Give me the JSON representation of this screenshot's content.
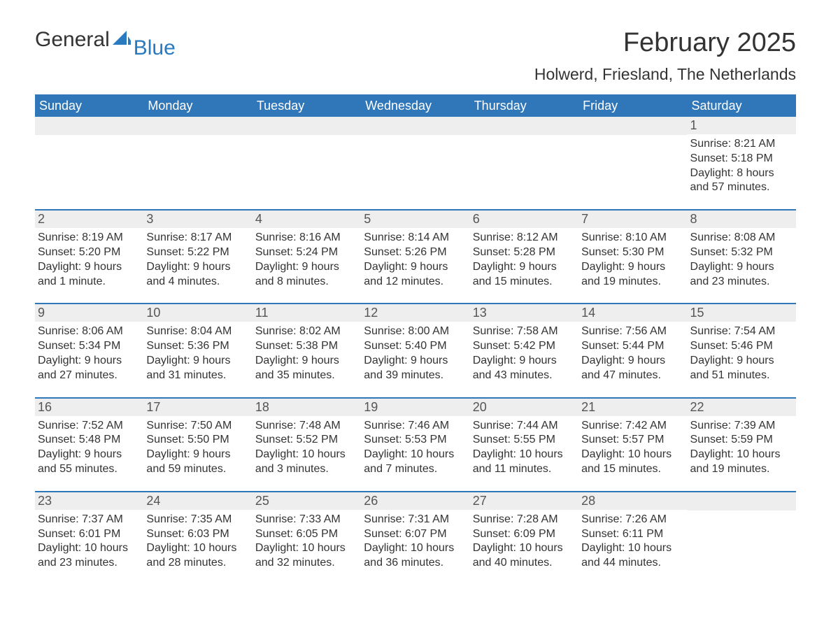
{
  "logo": {
    "part1": "General",
    "part2": "Blue",
    "icon_color": "#2a7ac0"
  },
  "title": "February 2025",
  "location": "Holwerd, Friesland, The Netherlands",
  "colors": {
    "header_bg": "#3077b9",
    "header_text": "#ffffff",
    "daynum_bg": "#eeeeee",
    "body_text": "#333333",
    "rule": "#3077b9"
  },
  "weekdays": [
    "Sunday",
    "Monday",
    "Tuesday",
    "Wednesday",
    "Thursday",
    "Friday",
    "Saturday"
  ],
  "weeks": [
    [
      null,
      null,
      null,
      null,
      null,
      null,
      {
        "n": "1",
        "sunrise": "Sunrise: 8:21 AM",
        "sunset": "Sunset: 5:18 PM",
        "daylight": "Daylight: 8 hours and 57 minutes."
      }
    ],
    [
      {
        "n": "2",
        "sunrise": "Sunrise: 8:19 AM",
        "sunset": "Sunset: 5:20 PM",
        "daylight": "Daylight: 9 hours and 1 minute."
      },
      {
        "n": "3",
        "sunrise": "Sunrise: 8:17 AM",
        "sunset": "Sunset: 5:22 PM",
        "daylight": "Daylight: 9 hours and 4 minutes."
      },
      {
        "n": "4",
        "sunrise": "Sunrise: 8:16 AM",
        "sunset": "Sunset: 5:24 PM",
        "daylight": "Daylight: 9 hours and 8 minutes."
      },
      {
        "n": "5",
        "sunrise": "Sunrise: 8:14 AM",
        "sunset": "Sunset: 5:26 PM",
        "daylight": "Daylight: 9 hours and 12 minutes."
      },
      {
        "n": "6",
        "sunrise": "Sunrise: 8:12 AM",
        "sunset": "Sunset: 5:28 PM",
        "daylight": "Daylight: 9 hours and 15 minutes."
      },
      {
        "n": "7",
        "sunrise": "Sunrise: 8:10 AM",
        "sunset": "Sunset: 5:30 PM",
        "daylight": "Daylight: 9 hours and 19 minutes."
      },
      {
        "n": "8",
        "sunrise": "Sunrise: 8:08 AM",
        "sunset": "Sunset: 5:32 PM",
        "daylight": "Daylight: 9 hours and 23 minutes."
      }
    ],
    [
      {
        "n": "9",
        "sunrise": "Sunrise: 8:06 AM",
        "sunset": "Sunset: 5:34 PM",
        "daylight": "Daylight: 9 hours and 27 minutes."
      },
      {
        "n": "10",
        "sunrise": "Sunrise: 8:04 AM",
        "sunset": "Sunset: 5:36 PM",
        "daylight": "Daylight: 9 hours and 31 minutes."
      },
      {
        "n": "11",
        "sunrise": "Sunrise: 8:02 AM",
        "sunset": "Sunset: 5:38 PM",
        "daylight": "Daylight: 9 hours and 35 minutes."
      },
      {
        "n": "12",
        "sunrise": "Sunrise: 8:00 AM",
        "sunset": "Sunset: 5:40 PM",
        "daylight": "Daylight: 9 hours and 39 minutes."
      },
      {
        "n": "13",
        "sunrise": "Sunrise: 7:58 AM",
        "sunset": "Sunset: 5:42 PM",
        "daylight": "Daylight: 9 hours and 43 minutes."
      },
      {
        "n": "14",
        "sunrise": "Sunrise: 7:56 AM",
        "sunset": "Sunset: 5:44 PM",
        "daylight": "Daylight: 9 hours and 47 minutes."
      },
      {
        "n": "15",
        "sunrise": "Sunrise: 7:54 AM",
        "sunset": "Sunset: 5:46 PM",
        "daylight": "Daylight: 9 hours and 51 minutes."
      }
    ],
    [
      {
        "n": "16",
        "sunrise": "Sunrise: 7:52 AM",
        "sunset": "Sunset: 5:48 PM",
        "daylight": "Daylight: 9 hours and 55 minutes."
      },
      {
        "n": "17",
        "sunrise": "Sunrise: 7:50 AM",
        "sunset": "Sunset: 5:50 PM",
        "daylight": "Daylight: 9 hours and 59 minutes."
      },
      {
        "n": "18",
        "sunrise": "Sunrise: 7:48 AM",
        "sunset": "Sunset: 5:52 PM",
        "daylight": "Daylight: 10 hours and 3 minutes."
      },
      {
        "n": "19",
        "sunrise": "Sunrise: 7:46 AM",
        "sunset": "Sunset: 5:53 PM",
        "daylight": "Daylight: 10 hours and 7 minutes."
      },
      {
        "n": "20",
        "sunrise": "Sunrise: 7:44 AM",
        "sunset": "Sunset: 5:55 PM",
        "daylight": "Daylight: 10 hours and 11 minutes."
      },
      {
        "n": "21",
        "sunrise": "Sunrise: 7:42 AM",
        "sunset": "Sunset: 5:57 PM",
        "daylight": "Daylight: 10 hours and 15 minutes."
      },
      {
        "n": "22",
        "sunrise": "Sunrise: 7:39 AM",
        "sunset": "Sunset: 5:59 PM",
        "daylight": "Daylight: 10 hours and 19 minutes."
      }
    ],
    [
      {
        "n": "23",
        "sunrise": "Sunrise: 7:37 AM",
        "sunset": "Sunset: 6:01 PM",
        "daylight": "Daylight: 10 hours and 23 minutes."
      },
      {
        "n": "24",
        "sunrise": "Sunrise: 7:35 AM",
        "sunset": "Sunset: 6:03 PM",
        "daylight": "Daylight: 10 hours and 28 minutes."
      },
      {
        "n": "25",
        "sunrise": "Sunrise: 7:33 AM",
        "sunset": "Sunset: 6:05 PM",
        "daylight": "Daylight: 10 hours and 32 minutes."
      },
      {
        "n": "26",
        "sunrise": "Sunrise: 7:31 AM",
        "sunset": "Sunset: 6:07 PM",
        "daylight": "Daylight: 10 hours and 36 minutes."
      },
      {
        "n": "27",
        "sunrise": "Sunrise: 7:28 AM",
        "sunset": "Sunset: 6:09 PM",
        "daylight": "Daylight: 10 hours and 40 minutes."
      },
      {
        "n": "28",
        "sunrise": "Sunrise: 7:26 AM",
        "sunset": "Sunset: 6:11 PM",
        "daylight": "Daylight: 10 hours and 44 minutes."
      },
      null
    ]
  ]
}
